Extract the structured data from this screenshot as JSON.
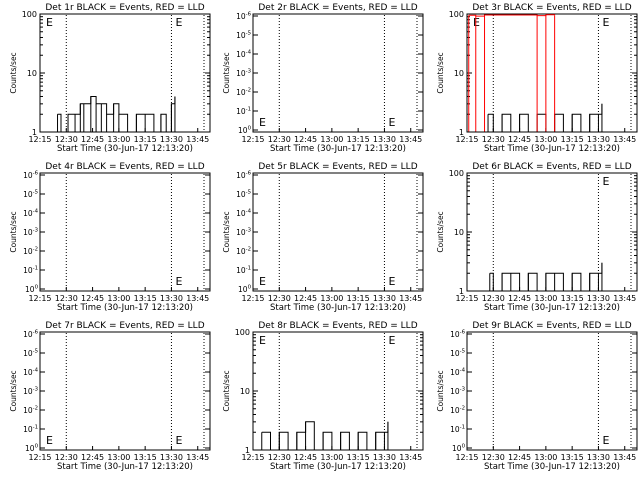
{
  "chart_data": [
    {
      "type": "line",
      "title": "Det 1r BLACK = Events, RED = LLD",
      "xlabel": "Start Time (30-Jun-17 12:13:20)",
      "ylabel": "Counts/sec",
      "x_ticks": [
        "12:15",
        "12:30",
        "12:45",
        "13:00",
        "13:15",
        "13:30",
        "13:45"
      ],
      "y_scale": "log",
      "y_ticks": [
        "1",
        "10",
        "100"
      ],
      "ylim": [
        1,
        100
      ],
      "markers": [
        {
          "x": "12:30",
          "style": "dotted"
        },
        {
          "x": "13:30",
          "style": "dotted"
        }
      ],
      "e_labels": [
        {
          "text": "E",
          "near": "top-left"
        },
        {
          "text": "E",
          "near": "top-right"
        }
      ],
      "series": [
        {
          "color": "#000000",
          "x": [
            "12:25",
            "12:27",
            "12:31",
            "12:35",
            "12:38",
            "12:40",
            "12:44",
            "12:47",
            "12:50",
            "12:53",
            "12:57",
            "13:00",
            "13:05",
            "13:10",
            "13:15",
            "13:20",
            "13:24",
            "13:27",
            "13:30",
            "13:32"
          ],
          "values": [
            2,
            1,
            2,
            2,
            3,
            3,
            4,
            3,
            3,
            2,
            3,
            2,
            1,
            2,
            2,
            1,
            2,
            1,
            3,
            4
          ]
        },
        {
          "color": "#ff0000",
          "x": [],
          "values": []
        }
      ]
    },
    {
      "type": "line",
      "title": "Det 2r BLACK = Events, RED = LLD",
      "xlabel": "Start Time (30-Jun-17 12:13:20)",
      "ylabel": "Counts/sec",
      "x_ticks": [
        "12:15",
        "12:30",
        "12:45",
        "13:00",
        "13:15",
        "13:30",
        "13:45"
      ],
      "y_scale": "log",
      "y_ticks": [
        "10^0",
        "10^-1",
        "10^-2",
        "10^-3",
        "10^-4",
        "10^-5",
        "10^-6"
      ],
      "markers": [
        {
          "x": "12:30",
          "style": "dotted"
        },
        {
          "x": "13:30",
          "style": "dotted"
        }
      ],
      "e_labels": [
        {
          "text": "E",
          "near": "bottom-left"
        },
        {
          "text": "E",
          "near": "bottom-right"
        }
      ],
      "series": []
    },
    {
      "type": "line",
      "title": "Det 3r BLACK = Events, RED = LLD",
      "xlabel": "Start Time (30-Jun-17 12:13:20)",
      "ylabel": "Counts/sec",
      "x_ticks": [
        "12:15",
        "12:30",
        "12:45",
        "13:00",
        "13:15",
        "13:30",
        "13:45"
      ],
      "y_scale": "log",
      "y_ticks": [
        "1",
        "10",
        "100"
      ],
      "ylim": [
        1,
        100
      ],
      "markers": [
        {
          "x": "12:30",
          "style": "dotted"
        },
        {
          "x": "13:30",
          "style": "dotted"
        }
      ],
      "e_labels": [
        {
          "text": "E",
          "near": "top-left"
        },
        {
          "text": "E",
          "near": "top-right"
        }
      ],
      "series": [
        {
          "color": "#000000",
          "x": [
            "12:27",
            "12:30",
            "12:35",
            "12:40",
            "12:45",
            "12:50",
            "12:55",
            "13:00",
            "13:05",
            "13:10",
            "13:15",
            "13:20",
            "13:25",
            "13:30",
            "13:32"
          ],
          "values": [
            2,
            1,
            2,
            1,
            2,
            1,
            2,
            1,
            2,
            1,
            2,
            1,
            2,
            2,
            3
          ]
        },
        {
          "color": "#ff0000",
          "x": [
            "12:16",
            "12:20",
            "12:25",
            "12:55",
            "13:00",
            "13:05"
          ],
          "values": [
            95,
            92,
            96,
            94,
            97,
            95
          ]
        }
      ]
    },
    {
      "type": "line",
      "title": "Det 4r BLACK = Events, RED = LLD",
      "xlabel": "Start Time (30-Jun-17 12:13:20)",
      "ylabel": "Counts/sec",
      "x_ticks": [
        "12:15",
        "12:30",
        "12:45",
        "13:00",
        "13:15",
        "13:30",
        "13:45"
      ],
      "y_scale": "log",
      "y_ticks": [
        "10^0",
        "10^-1",
        "10^-2",
        "10^-3",
        "10^-4",
        "10^-5",
        "10^-6"
      ],
      "markers": [
        {
          "x": "12:30",
          "style": "dotted"
        },
        {
          "x": "13:30",
          "style": "dotted"
        }
      ],
      "e_labels": [
        {
          "text": "E",
          "near": "bottom-right"
        }
      ],
      "series": []
    },
    {
      "type": "line",
      "title": "Det 5r BLACK = Events, RED = LLD",
      "xlabel": "Start Time (30-Jun-17 12:13:20)",
      "ylabel": "Counts/sec",
      "x_ticks": [
        "12:15",
        "12:30",
        "12:45",
        "13:00",
        "13:15",
        "13:30",
        "13:45"
      ],
      "y_scale": "log",
      "y_ticks": [
        "10^0",
        "10^-1",
        "10^-2",
        "10^-3",
        "10^-4",
        "10^-5",
        "10^-6"
      ],
      "markers": [
        {
          "x": "12:30",
          "style": "dotted"
        },
        {
          "x": "13:30",
          "style": "dotted"
        }
      ],
      "e_labels": [
        {
          "text": "E",
          "near": "bottom-left"
        },
        {
          "text": "E",
          "near": "bottom-right"
        }
      ],
      "series": []
    },
    {
      "type": "line",
      "title": "Det 6r BLACK = Events, RED = LLD",
      "xlabel": "Start Time (30-Jun-17 12:13:20)",
      "ylabel": "Counts/sec",
      "x_ticks": [
        "12:15",
        "12:30",
        "12:45",
        "13:00",
        "13:15",
        "13:30",
        "13:45"
      ],
      "y_scale": "log",
      "y_ticks": [
        "1",
        "10",
        "100"
      ],
      "ylim": [
        1,
        100
      ],
      "markers": [
        {
          "x": "12:30",
          "style": "dotted"
        },
        {
          "x": "13:30",
          "style": "dotted"
        }
      ],
      "e_labels": [
        {
          "text": "E",
          "near": "top-right"
        }
      ],
      "series": [
        {
          "color": "#000000",
          "x": [
            "12:28",
            "12:30",
            "12:35",
            "12:40",
            "12:45",
            "12:50",
            "12:55",
            "13:00",
            "13:05",
            "13:10",
            "13:15",
            "13:20",
            "13:25",
            "13:30",
            "13:32"
          ],
          "values": [
            2,
            1,
            2,
            2,
            1,
            2,
            1,
            2,
            2,
            1,
            2,
            1,
            2,
            2,
            3
          ]
        },
        {
          "color": "#ff0000",
          "x": [],
          "values": []
        }
      ]
    },
    {
      "type": "line",
      "title": "Det 7r BLACK = Events, RED = LLD",
      "xlabel": "Start Time (30-Jun-17 12:13:20)",
      "ylabel": "Counts/sec",
      "x_ticks": [
        "12:15",
        "12:30",
        "12:45",
        "13:00",
        "13:15",
        "13:30",
        "13:45"
      ],
      "y_scale": "log",
      "y_ticks": [
        "10^0",
        "10^-1",
        "10^-2",
        "10^-3",
        "10^-4",
        "10^-5",
        "10^-6"
      ],
      "markers": [
        {
          "x": "12:30",
          "style": "dotted"
        },
        {
          "x": "13:30",
          "style": "dotted"
        }
      ],
      "e_labels": [
        {
          "text": "E",
          "near": "bottom-left"
        },
        {
          "text": "E",
          "near": "bottom-right"
        }
      ],
      "series": []
    },
    {
      "type": "line",
      "title": "Det 8r BLACK = Events, RED = LLD",
      "xlabel": "Start Time (30-Jun-17 12:13:20)",
      "ylabel": "Counts/sec",
      "x_ticks": [
        "12:15",
        "12:30",
        "12:45",
        "13:00",
        "13:15",
        "13:30",
        "13:45"
      ],
      "y_scale": "log",
      "y_ticks": [
        "1",
        "10",
        "100"
      ],
      "ylim": [
        1,
        100
      ],
      "markers": [
        {
          "x": "12:30",
          "style": "dotted"
        },
        {
          "x": "13:30",
          "style": "dotted"
        }
      ],
      "e_labels": [
        {
          "text": "E",
          "near": "top-left"
        },
        {
          "text": "E",
          "near": "top-right"
        }
      ],
      "series": [
        {
          "color": "#000000",
          "x": [
            "12:20",
            "12:25",
            "12:30",
            "12:35",
            "12:40",
            "12:45",
            "12:50",
            "12:55",
            "13:00",
            "13:05",
            "13:10",
            "13:15",
            "13:20",
            "13:25",
            "13:30",
            "13:32"
          ],
          "values": [
            2,
            1,
            2,
            1,
            2,
            3,
            1,
            2,
            1,
            2,
            1,
            2,
            1,
            2,
            2,
            3
          ]
        },
        {
          "color": "#ff0000",
          "x": [],
          "values": []
        }
      ]
    },
    {
      "type": "line",
      "title": "Det 9r BLACK = Events, RED = LLD",
      "xlabel": "Start Time (30-Jun-17 12:13:20)",
      "ylabel": "Counts/sec",
      "x_ticks": [
        "12:15",
        "12:30",
        "12:45",
        "13:00",
        "13:15",
        "13:30",
        "13:45"
      ],
      "y_scale": "log",
      "y_ticks": [
        "10^0",
        "10^-1",
        "10^-2",
        "10^-3",
        "10^-4",
        "10^-5",
        "10^-6"
      ],
      "markers": [
        {
          "x": "12:30",
          "style": "dotted"
        },
        {
          "x": "13:30",
          "style": "dotted"
        }
      ],
      "e_labels": [
        {
          "text": "E",
          "near": "bottom-right"
        }
      ],
      "series": []
    }
  ]
}
